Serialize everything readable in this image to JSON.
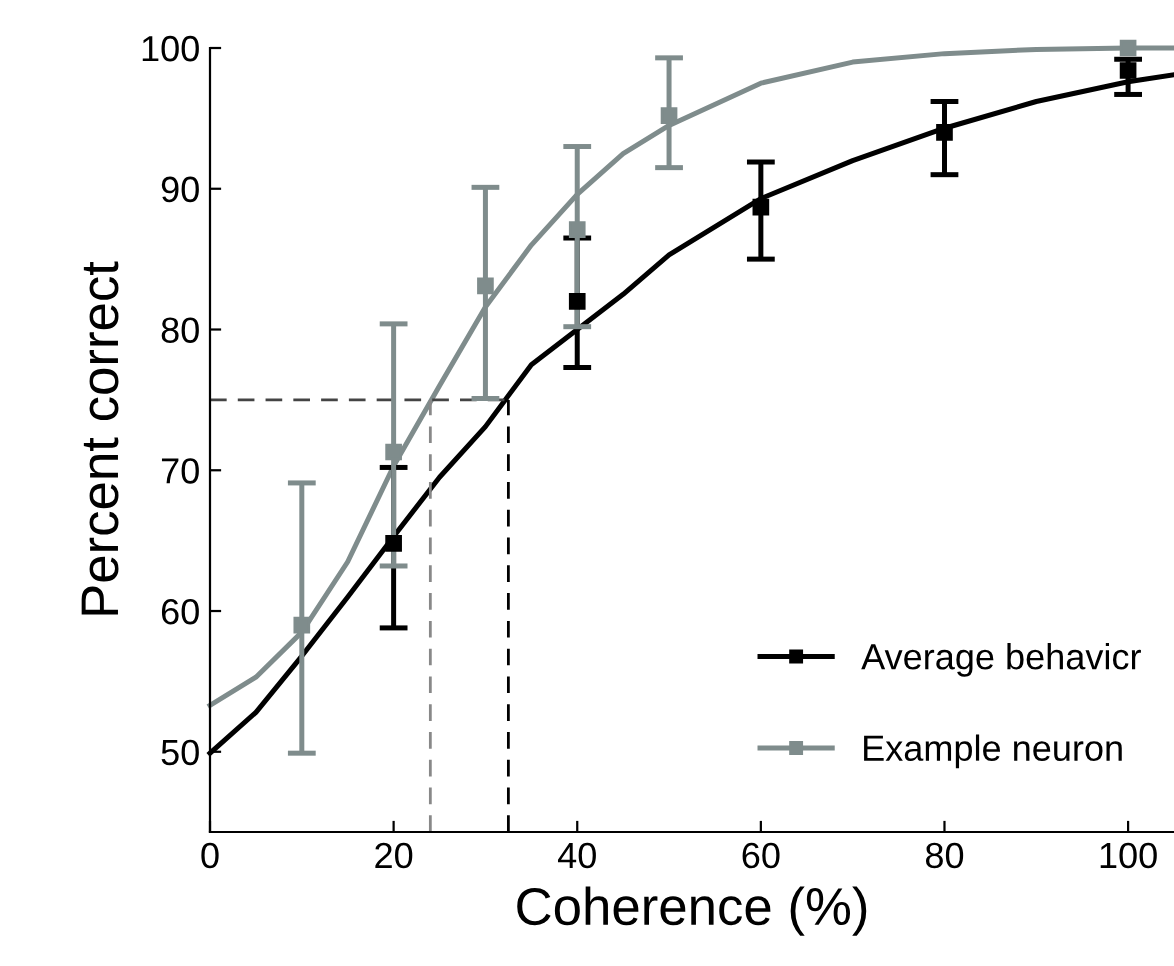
{
  "chart_data": {
    "type": "scatter",
    "xlabel": "Coherence (%)",
    "ylabel": "Percent correct",
    "xlim": [
      0,
      105
    ],
    "ylim": [
      44.3,
      100
    ],
    "xticks": [
      0,
      20,
      40,
      60,
      80,
      100
    ],
    "yticks": [
      50,
      60,
      70,
      80,
      90,
      100
    ],
    "grid": false,
    "legend": "bottom right",
    "series": [
      {
        "type": "line",
        "color": "#000000",
        "x": [
          0,
          5,
          10,
          15,
          20,
          25,
          30,
          35,
          40,
          45,
          50,
          60,
          70,
          80,
          90,
          100,
          105
        ],
        "values": [
          49.9,
          52.8,
          56.8,
          61,
          65.3,
          69.5,
          73.1,
          77.5,
          80,
          82.5,
          85.3,
          89.3,
          92,
          94.3,
          96.2,
          97.6,
          98.1
        ]
      },
      {
        "type": "line",
        "color": "#7f8c8c",
        "x": [
          0,
          5,
          10,
          15,
          20,
          25,
          30,
          35,
          40,
          45,
          50,
          60,
          70,
          80,
          90,
          100,
          105
        ],
        "values": [
          53.3,
          55.3,
          58.5,
          63.5,
          70.3,
          76,
          81.6,
          86,
          89.6,
          92.5,
          94.5,
          97.5,
          99,
          99.6,
          99.9,
          100,
          100
        ]
      },
      {
        "type": "line",
        "color": "#444444",
        "line_style": "dashed",
        "x": [
          0,
          32.5
        ],
        "values": [
          75,
          75
        ]
      },
      {
        "type": "line",
        "color": "#888888",
        "line_style": "dashed",
        "x": [
          24,
          24
        ],
        "values": [
          44.3,
          75
        ]
      },
      {
        "type": "line",
        "color": "#000000",
        "line_style": "dashed",
        "x": [
          32.5,
          32.5
        ],
        "values": [
          44.3,
          75
        ]
      },
      {
        "name": "Average behavicr",
        "marker": "square",
        "color": "#000000",
        "x": [
          20,
          40,
          60,
          80,
          100
        ],
        "values": [
          64.8,
          82.0,
          88.7,
          94.0,
          98.4
        ],
        "errors": [
          [
            58.8,
            70.2
          ],
          [
            77.3,
            86.5
          ],
          [
            85.0,
            91.9
          ],
          [
            91.0,
            96.2
          ],
          [
            96.7,
            99.2
          ]
        ]
      },
      {
        "name": "Example neuron",
        "marker": "square",
        "color": "#7f8c8c",
        "x": [
          10,
          20,
          30,
          40,
          50,
          100
        ],
        "values": [
          59.0,
          71.3,
          83.1,
          87.1,
          95.2,
          100
        ],
        "errors": [
          [
            49.9,
            69.1
          ],
          [
            63.2,
            80.4
          ],
          [
            75.1,
            90.1
          ],
          [
            80.2,
            93.0
          ],
          [
            91.5,
            99.3
          ],
          null
        ]
      }
    ]
  }
}
